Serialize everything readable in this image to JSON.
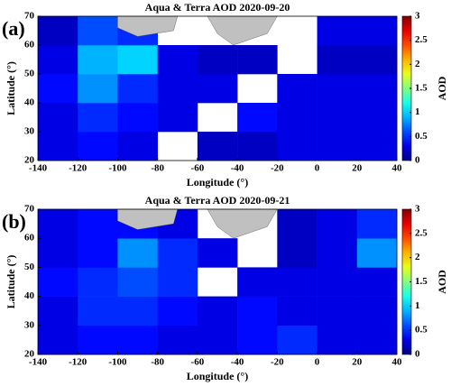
{
  "chart_data": [
    {
      "type": "heatmap",
      "panel_label": "(a)",
      "title": "Aqua & Terra AOD 2020-09-20",
      "xlabel": "Longitude (°)",
      "ylabel": "Latitude (°)",
      "colorbar_label": "AOD",
      "colormap": "jet",
      "x": [
        -130,
        -110,
        -90,
        -70,
        -50,
        -30,
        -10,
        10,
        30
      ],
      "y": [
        25,
        35,
        45,
        55,
        65
      ],
      "values": [
        [
          0.3,
          0.4,
          0.3,
          null,
          0.2,
          0.2,
          0.3,
          0.3,
          0.3
        ],
        [
          0.3,
          0.5,
          0.4,
          0.3,
          null,
          0.4,
          0.3,
          0.3,
          0.3
        ],
        [
          0.4,
          0.8,
          0.5,
          0.3,
          0.3,
          null,
          0.3,
          0.3,
          0.3
        ],
        [
          0.3,
          0.9,
          1.0,
          0.3,
          0.2,
          0.2,
          null,
          0.2,
          0.2
        ],
        [
          0.2,
          0.6,
          0.5,
          null,
          null,
          null,
          null,
          0.3,
          0.3
        ]
      ],
      "xlim": [
        -140,
        40
      ],
      "ylim": [
        20,
        70
      ],
      "xticks": [
        -140,
        -120,
        -100,
        -80,
        -60,
        -40,
        -20,
        0,
        20,
        40
      ],
      "yticks": [
        20,
        30,
        40,
        50,
        60,
        70
      ],
      "clim": [
        0,
        3
      ],
      "cticks": [
        0,
        0.5,
        1,
        1.5,
        2,
        2.5,
        3
      ]
    },
    {
      "type": "heatmap",
      "panel_label": "(b)",
      "title": "Aqua & Terra AOD 2020-09-21",
      "xlabel": "Longitude (°)",
      "ylabel": "Latitude (°)",
      "colorbar_label": "AOD",
      "colormap": "jet",
      "x": [
        -130,
        -110,
        -90,
        -70,
        -50,
        -30,
        -10,
        10,
        30
      ],
      "y": [
        25,
        35,
        45,
        55,
        65
      ],
      "values": [
        [
          0.3,
          0.4,
          0.4,
          0.3,
          0.3,
          0.4,
          0.5,
          0.3,
          0.3
        ],
        [
          0.3,
          0.5,
          0.5,
          0.4,
          0.3,
          0.4,
          0.3,
          0.3,
          0.3
        ],
        [
          0.4,
          0.5,
          0.6,
          0.5,
          null,
          0.3,
          0.3,
          0.3,
          0.3
        ],
        [
          0.3,
          0.4,
          0.8,
          0.5,
          0.3,
          null,
          0.2,
          0.3,
          0.8
        ],
        [
          0.3,
          0.4,
          0.4,
          0.3,
          null,
          null,
          0.2,
          0.3,
          0.5
        ]
      ],
      "xlim": [
        -140,
        40
      ],
      "ylim": [
        20,
        70
      ],
      "xticks": [
        -140,
        -120,
        -100,
        -80,
        -60,
        -40,
        -20,
        0,
        20,
        40
      ],
      "yticks": [
        20,
        30,
        40,
        50,
        60,
        70
      ],
      "clim": [
        0,
        3
      ],
      "cticks": [
        0,
        0.5,
        1,
        1.5,
        2,
        2.5,
        3
      ]
    }
  ]
}
